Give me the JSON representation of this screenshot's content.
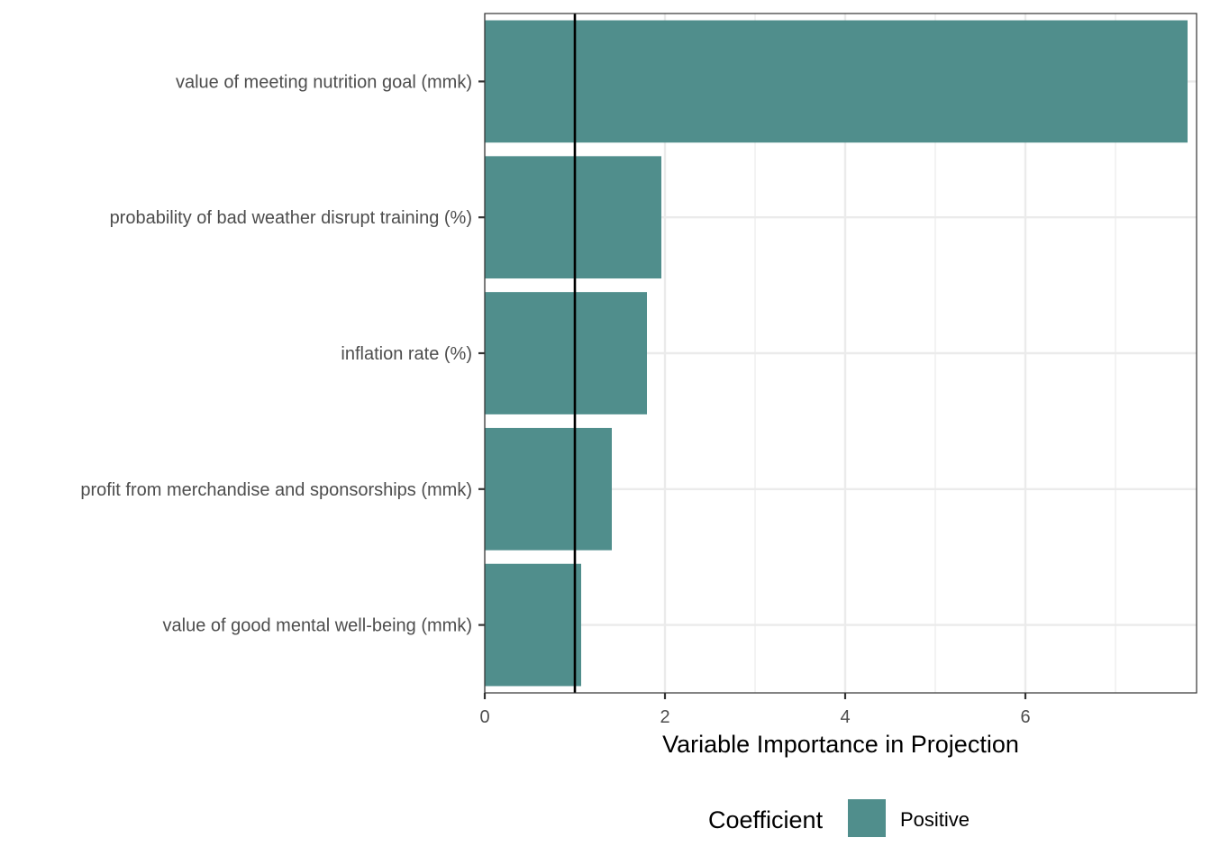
{
  "chart_data": {
    "type": "bar",
    "orientation": "horizontal",
    "categories": [
      "value of meeting nutrition goal (mmk)",
      "probability of bad weather disrupt training (%)",
      "inflation rate (%)",
      "profit from merchandise and sponsorships (mmk)",
      "value of good mental well-being (mmk)"
    ],
    "series": [
      {
        "name": "Positive",
        "values": [
          7.8,
          1.96,
          1.8,
          1.41,
          1.07
        ],
        "color": "#508e8c"
      }
    ],
    "xlabel": "Variable Importance in Projection",
    "ylabel": "",
    "xlim": [
      0,
      7.9
    ],
    "x_ticks": [
      0,
      2,
      4,
      6
    ],
    "reference_line": {
      "x": 1,
      "color": "#000000"
    },
    "grid": true,
    "legend": {
      "title": "Coefficient",
      "position": "bottom",
      "entries": [
        {
          "label": "Positive",
          "color": "#508e8c"
        }
      ]
    }
  }
}
